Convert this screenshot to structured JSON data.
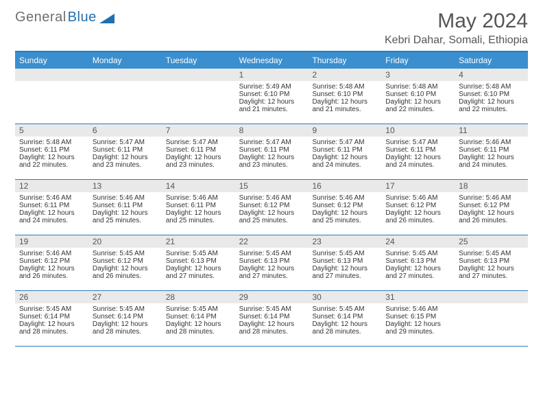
{
  "logo": {
    "text1": "General",
    "text2": "Blue"
  },
  "title": "May 2024",
  "location": "Kebri Dahar, Somali, Ethiopia",
  "colors": {
    "header_bg": "#3b8fcf",
    "header_text": "#ffffff",
    "border": "#2a7ab9",
    "daynum_bg": "#e9e9e9",
    "text": "#333333",
    "title_text": "#555555"
  },
  "weekdays": [
    "Sunday",
    "Monday",
    "Tuesday",
    "Wednesday",
    "Thursday",
    "Friday",
    "Saturday"
  ],
  "weeks": [
    [
      {
        "n": "",
        "sr": "",
        "ss": "",
        "dl": ""
      },
      {
        "n": "",
        "sr": "",
        "ss": "",
        "dl": ""
      },
      {
        "n": "",
        "sr": "",
        "ss": "",
        "dl": ""
      },
      {
        "n": "1",
        "sr": "Sunrise: 5:49 AM",
        "ss": "Sunset: 6:10 PM",
        "dl": "Daylight: 12 hours and 21 minutes."
      },
      {
        "n": "2",
        "sr": "Sunrise: 5:48 AM",
        "ss": "Sunset: 6:10 PM",
        "dl": "Daylight: 12 hours and 21 minutes."
      },
      {
        "n": "3",
        "sr": "Sunrise: 5:48 AM",
        "ss": "Sunset: 6:10 PM",
        "dl": "Daylight: 12 hours and 22 minutes."
      },
      {
        "n": "4",
        "sr": "Sunrise: 5:48 AM",
        "ss": "Sunset: 6:10 PM",
        "dl": "Daylight: 12 hours and 22 minutes."
      }
    ],
    [
      {
        "n": "5",
        "sr": "Sunrise: 5:48 AM",
        "ss": "Sunset: 6:11 PM",
        "dl": "Daylight: 12 hours and 22 minutes."
      },
      {
        "n": "6",
        "sr": "Sunrise: 5:47 AM",
        "ss": "Sunset: 6:11 PM",
        "dl": "Daylight: 12 hours and 23 minutes."
      },
      {
        "n": "7",
        "sr": "Sunrise: 5:47 AM",
        "ss": "Sunset: 6:11 PM",
        "dl": "Daylight: 12 hours and 23 minutes."
      },
      {
        "n": "8",
        "sr": "Sunrise: 5:47 AM",
        "ss": "Sunset: 6:11 PM",
        "dl": "Daylight: 12 hours and 23 minutes."
      },
      {
        "n": "9",
        "sr": "Sunrise: 5:47 AM",
        "ss": "Sunset: 6:11 PM",
        "dl": "Daylight: 12 hours and 24 minutes."
      },
      {
        "n": "10",
        "sr": "Sunrise: 5:47 AM",
        "ss": "Sunset: 6:11 PM",
        "dl": "Daylight: 12 hours and 24 minutes."
      },
      {
        "n": "11",
        "sr": "Sunrise: 5:46 AM",
        "ss": "Sunset: 6:11 PM",
        "dl": "Daylight: 12 hours and 24 minutes."
      }
    ],
    [
      {
        "n": "12",
        "sr": "Sunrise: 5:46 AM",
        "ss": "Sunset: 6:11 PM",
        "dl": "Daylight: 12 hours and 24 minutes."
      },
      {
        "n": "13",
        "sr": "Sunrise: 5:46 AM",
        "ss": "Sunset: 6:11 PM",
        "dl": "Daylight: 12 hours and 25 minutes."
      },
      {
        "n": "14",
        "sr": "Sunrise: 5:46 AM",
        "ss": "Sunset: 6:11 PM",
        "dl": "Daylight: 12 hours and 25 minutes."
      },
      {
        "n": "15",
        "sr": "Sunrise: 5:46 AM",
        "ss": "Sunset: 6:12 PM",
        "dl": "Daylight: 12 hours and 25 minutes."
      },
      {
        "n": "16",
        "sr": "Sunrise: 5:46 AM",
        "ss": "Sunset: 6:12 PM",
        "dl": "Daylight: 12 hours and 25 minutes."
      },
      {
        "n": "17",
        "sr": "Sunrise: 5:46 AM",
        "ss": "Sunset: 6:12 PM",
        "dl": "Daylight: 12 hours and 26 minutes."
      },
      {
        "n": "18",
        "sr": "Sunrise: 5:46 AM",
        "ss": "Sunset: 6:12 PM",
        "dl": "Daylight: 12 hours and 26 minutes."
      }
    ],
    [
      {
        "n": "19",
        "sr": "Sunrise: 5:46 AM",
        "ss": "Sunset: 6:12 PM",
        "dl": "Daylight: 12 hours and 26 minutes."
      },
      {
        "n": "20",
        "sr": "Sunrise: 5:45 AM",
        "ss": "Sunset: 6:12 PM",
        "dl": "Daylight: 12 hours and 26 minutes."
      },
      {
        "n": "21",
        "sr": "Sunrise: 5:45 AM",
        "ss": "Sunset: 6:13 PM",
        "dl": "Daylight: 12 hours and 27 minutes."
      },
      {
        "n": "22",
        "sr": "Sunrise: 5:45 AM",
        "ss": "Sunset: 6:13 PM",
        "dl": "Daylight: 12 hours and 27 minutes."
      },
      {
        "n": "23",
        "sr": "Sunrise: 5:45 AM",
        "ss": "Sunset: 6:13 PM",
        "dl": "Daylight: 12 hours and 27 minutes."
      },
      {
        "n": "24",
        "sr": "Sunrise: 5:45 AM",
        "ss": "Sunset: 6:13 PM",
        "dl": "Daylight: 12 hours and 27 minutes."
      },
      {
        "n": "25",
        "sr": "Sunrise: 5:45 AM",
        "ss": "Sunset: 6:13 PM",
        "dl": "Daylight: 12 hours and 27 minutes."
      }
    ],
    [
      {
        "n": "26",
        "sr": "Sunrise: 5:45 AM",
        "ss": "Sunset: 6:14 PM",
        "dl": "Daylight: 12 hours and 28 minutes."
      },
      {
        "n": "27",
        "sr": "Sunrise: 5:45 AM",
        "ss": "Sunset: 6:14 PM",
        "dl": "Daylight: 12 hours and 28 minutes."
      },
      {
        "n": "28",
        "sr": "Sunrise: 5:45 AM",
        "ss": "Sunset: 6:14 PM",
        "dl": "Daylight: 12 hours and 28 minutes."
      },
      {
        "n": "29",
        "sr": "Sunrise: 5:45 AM",
        "ss": "Sunset: 6:14 PM",
        "dl": "Daylight: 12 hours and 28 minutes."
      },
      {
        "n": "30",
        "sr": "Sunrise: 5:45 AM",
        "ss": "Sunset: 6:14 PM",
        "dl": "Daylight: 12 hours and 28 minutes."
      },
      {
        "n": "31",
        "sr": "Sunrise: 5:46 AM",
        "ss": "Sunset: 6:15 PM",
        "dl": "Daylight: 12 hours and 29 minutes."
      },
      {
        "n": "",
        "sr": "",
        "ss": "",
        "dl": ""
      }
    ]
  ]
}
